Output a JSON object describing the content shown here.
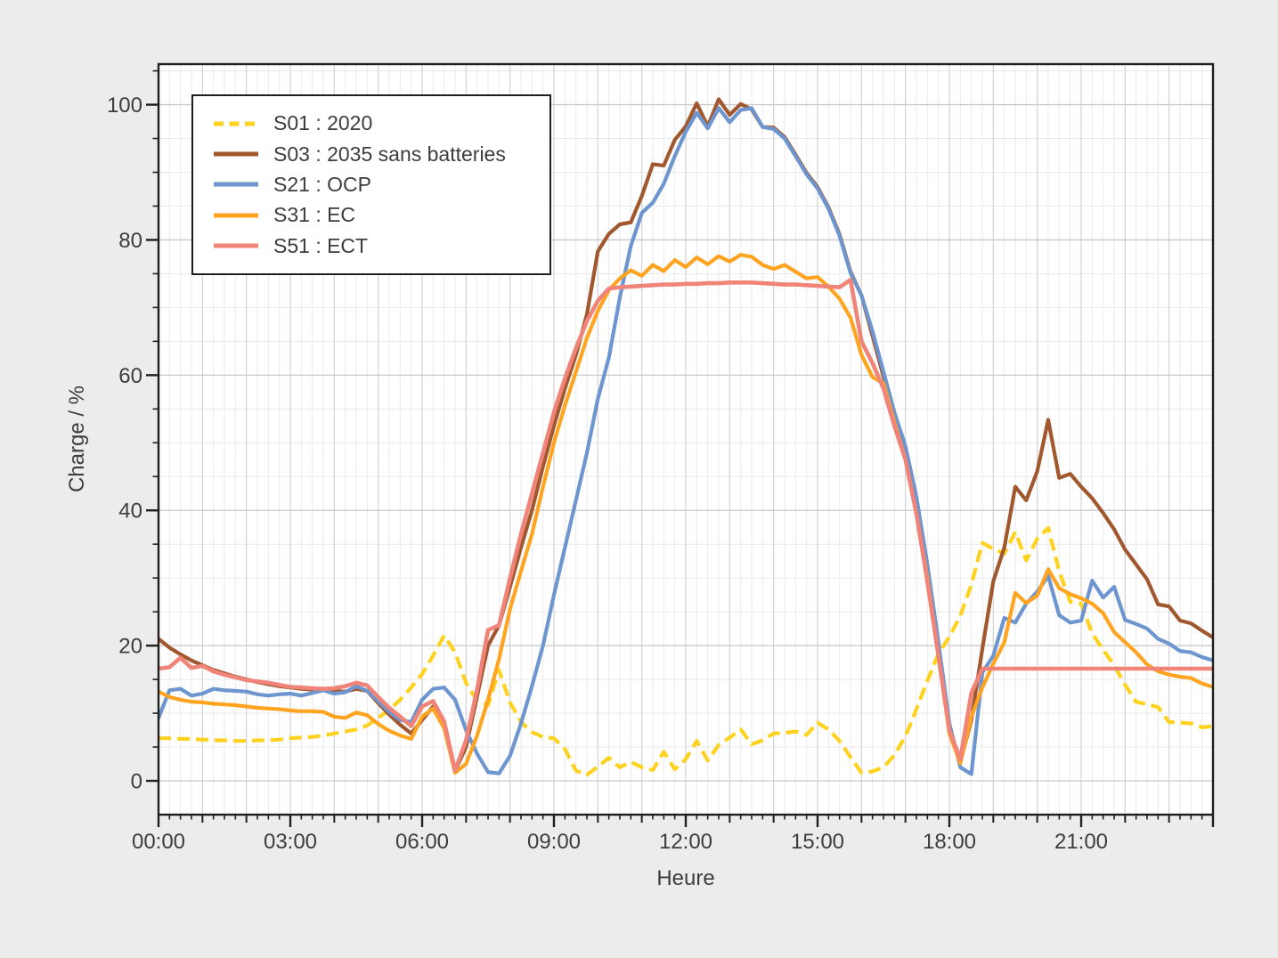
{
  "figure": {
    "background": "#ECECEC",
    "plot_background": "#FFFFFF",
    "spine_color": "#1F1F1F",
    "text_color": "#3D3D3D",
    "grid_major_color": "#C9C9C9",
    "grid_hour_color": "#D2D2D2",
    "grid_minor_color": "#EAEAEA"
  },
  "axes": {
    "xlabel": "Heure",
    "ylabel": "Charge / %",
    "x_tick_labels": [
      "00:00",
      "03:00",
      "06:00",
      "09:00",
      "12:00",
      "15:00",
      "18:00",
      "21:00"
    ],
    "x_tick_hours": [
      0,
      3,
      6,
      9,
      12,
      15,
      18,
      21
    ],
    "y_tick_labels": [
      "0",
      "20",
      "40",
      "60",
      "80",
      "100"
    ],
    "y_tick_values": [
      0,
      20,
      40,
      60,
      80,
      100
    ],
    "x_minor_step_hours": 0.25,
    "y_minor_step": 5
  },
  "legend": {
    "position": "upper left",
    "background": "#FFFFFF",
    "border_color": "#1F1F1F"
  },
  "chart_data": {
    "type": "line",
    "title": "",
    "xlabel": "Heure",
    "ylabel": "Charge / %",
    "xlim_hours": [
      0,
      24
    ],
    "ylim": [
      -5,
      106
    ],
    "grid": true,
    "legend_position": "upper left",
    "x_hours": [
      0,
      0.25,
      0.5,
      0.75,
      1,
      1.25,
      1.5,
      1.75,
      2,
      2.25,
      2.5,
      2.75,
      3,
      3.25,
      3.5,
      3.75,
      4,
      4.25,
      4.5,
      4.75,
      5,
      5.25,
      5.5,
      5.75,
      6,
      6.25,
      6.5,
      6.75,
      7,
      7.25,
      7.5,
      7.75,
      8,
      8.25,
      8.5,
      8.75,
      9,
      9.25,
      9.5,
      9.75,
      10,
      10.25,
      10.5,
      10.75,
      11,
      11.25,
      11.5,
      11.75,
      12,
      12.25,
      12.5,
      12.75,
      13,
      13.25,
      13.5,
      13.75,
      14,
      14.25,
      14.5,
      14.75,
      15,
      15.25,
      15.5,
      15.75,
      16,
      16.25,
      16.5,
      16.75,
      17,
      17.25,
      17.5,
      17.75,
      18,
      18.25,
      18.5,
      18.75,
      19,
      19.25,
      19.5,
      19.75,
      20,
      20.25,
      20.5,
      20.75,
      21,
      21.25,
      21.5,
      21.75,
      22,
      22.25,
      22.5,
      22.75,
      23,
      23.25,
      23.5,
      23.75,
      24
    ],
    "series": [
      {
        "name": "S01",
        "label": "S01 : 2020",
        "color": "#FFD21F",
        "dashed": true,
        "line_width": 4.2,
        "values": [
          6.3,
          6.3,
          6.2,
          6.2,
          6.1,
          6,
          6,
          5.9,
          5.9,
          6,
          6,
          6.1,
          6.3,
          6.4,
          6.5,
          6.7,
          7,
          7.3,
          7.6,
          8.2,
          9.3,
          10.5,
          12,
          13.8,
          15.8,
          18.5,
          21.5,
          19,
          14.5,
          11.8,
          11.2,
          16.4,
          11.6,
          8.7,
          7.2,
          6.5,
          6.3,
          4.7,
          1.5,
          0.9,
          2.1,
          3.4,
          2,
          2.8,
          2,
          1.6,
          4.3,
          1.7,
          3.2,
          5.9,
          3,
          5.3,
          6.4,
          7.6,
          5.4,
          6,
          7,
          7.1,
          7.3,
          6.8,
          8.6,
          7.6,
          5.9,
          3.5,
          1.2,
          1.4,
          2,
          3.8,
          6.6,
          10.6,
          14.8,
          18.8,
          21.3,
          24.4,
          29,
          35.2,
          34.3,
          33.6,
          36.8,
          32.6,
          35.8,
          37.4,
          31,
          26.5,
          26.2,
          21.8,
          19.4,
          17.1,
          14.2,
          11.7,
          11.3,
          10.9,
          8.7,
          8.6,
          8.5,
          7.9,
          8.1
        ]
      },
      {
        "name": "S03",
        "label": "S03 : 2035 sans batteries",
        "color": "#A2582F",
        "dashed": false,
        "line_width": 4.2,
        "values": [
          21,
          19.7,
          18.7,
          17.8,
          17.1,
          16.4,
          15.9,
          15.4,
          15,
          14.6,
          14.3,
          14,
          13.8,
          13.6,
          13.5,
          13.4,
          13.3,
          13.2,
          13.6,
          13.3,
          11.5,
          9.8,
          8.3,
          7,
          9,
          11,
          8.2,
          1.5,
          5,
          12.5,
          20,
          23,
          28.7,
          34.5,
          40,
          46.5,
          52.5,
          58,
          63,
          69,
          78.3,
          80.9,
          82.3,
          82.6,
          86.5,
          91.2,
          91,
          94.8,
          96.8,
          100.2,
          96.8,
          100.8,
          98.5,
          100.1,
          99.3,
          96.7,
          96.6,
          95.2,
          92.6,
          89.9,
          87.8,
          84.8,
          80.8,
          75.3,
          71.8,
          65.8,
          59.8,
          53.8,
          48.5,
          41,
          31,
          19.5,
          7.5,
          2.8,
          9,
          19.5,
          29.5,
          34.5,
          43.5,
          41.5,
          45.8,
          53.4,
          44.8,
          45.4,
          43.5,
          41.8,
          39.6,
          37.2,
          34.2,
          32,
          29.8,
          26.1,
          25.8,
          23.7,
          23.3,
          22.2,
          21.2
        ]
      },
      {
        "name": "S21",
        "label": "S21 : OCP",
        "color": "#6D95D0",
        "dashed": false,
        "line_width": 4.2,
        "values": [
          9.3,
          13.4,
          13.6,
          12.6,
          12.9,
          13.6,
          13.4,
          13.3,
          13.2,
          12.8,
          12.6,
          12.8,
          12.9,
          12.6,
          13,
          13.4,
          12.9,
          13.1,
          14,
          13.3,
          11.8,
          10.2,
          9,
          8.7,
          12,
          13.6,
          13.8,
          12,
          7.5,
          4,
          1.3,
          1.1,
          3.7,
          8.5,
          14,
          20,
          27.5,
          34.5,
          41.5,
          48.5,
          56.5,
          62.6,
          71.5,
          79.1,
          84,
          85.5,
          88.3,
          92.4,
          96,
          98.8,
          96.5,
          99.5,
          97.4,
          99.2,
          99.5,
          96.7,
          96.4,
          95,
          92.4,
          89.7,
          87.6,
          84.6,
          80.6,
          75.1,
          71.8,
          66.5,
          60.5,
          54.5,
          49.5,
          42,
          32,
          20.5,
          8.5,
          2,
          1,
          16,
          18.5,
          24.1,
          23.4,
          26.2,
          28,
          30.3,
          24.5,
          23.4,
          23.7,
          29.6,
          27.1,
          28.7,
          23.8,
          23.2,
          22.5,
          21,
          20.3,
          19.2,
          19,
          18.3,
          17.8
        ]
      },
      {
        "name": "S31",
        "label": "S31 : EC",
        "color": "#FFA421",
        "dashed": false,
        "line_width": 4.2,
        "values": [
          13.2,
          12.4,
          12,
          11.7,
          11.6,
          11.4,
          11.3,
          11.2,
          11,
          10.8,
          10.7,
          10.6,
          10.4,
          10.3,
          10.3,
          10.2,
          9.5,
          9.3,
          10.1,
          9.7,
          8.4,
          7.4,
          6.7,
          6.2,
          9.5,
          10.7,
          7.8,
          1.2,
          2.5,
          6.7,
          12,
          18,
          25.4,
          31,
          36.5,
          43.5,
          50,
          55.5,
          60.5,
          65.5,
          69.5,
          72.6,
          74.3,
          75.5,
          74.7,
          76.3,
          75.4,
          77,
          76,
          77.4,
          76.4,
          77.6,
          76.8,
          77.8,
          77.5,
          76.3,
          75.7,
          76.3,
          75.3,
          74.3,
          74.5,
          73.1,
          71.3,
          68.5,
          63,
          59.7,
          58.8,
          53,
          47.5,
          39.5,
          30,
          18.5,
          7,
          2.6,
          9.5,
          13.8,
          17.3,
          20.5,
          27.8,
          26.3,
          27.4,
          31.3,
          28.5,
          27.6,
          27,
          26.2,
          24.8,
          22,
          20.5,
          19,
          17.2,
          16.2,
          15.7,
          15.4,
          15.2,
          14.4,
          13.9
        ]
      },
      {
        "name": "S51",
        "label": "S51 : ECT",
        "color": "#F08478",
        "dashed": false,
        "line_width": 4.6,
        "values": [
          16.6,
          16.8,
          18.2,
          16.7,
          17,
          16.2,
          15.7,
          15.3,
          14.9,
          14.7,
          14.5,
          14.2,
          13.9,
          13.8,
          13.7,
          13.6,
          13.7,
          14,
          14.5,
          14.1,
          12.4,
          10.8,
          9.5,
          8.1,
          11,
          11.8,
          8.8,
          1.5,
          6,
          13.5,
          22.3,
          23,
          30,
          36.5,
          42.5,
          48.5,
          54.5,
          59.5,
          64,
          68,
          71,
          72.8,
          73,
          73.1,
          73.2,
          73.3,
          73.4,
          73.4,
          73.5,
          73.5,
          73.6,
          73.6,
          73.7,
          73.7,
          73.7,
          73.6,
          73.5,
          73.4,
          73.4,
          73.3,
          73.2,
          73.1,
          73,
          74.1,
          65,
          61.8,
          58,
          52.5,
          47.5,
          39.5,
          29.5,
          18.5,
          7.5,
          3.2,
          13,
          16.6,
          16.6,
          16.6,
          16.6,
          16.6,
          16.6,
          16.6,
          16.6,
          16.6,
          16.6,
          16.6,
          16.6,
          16.6,
          16.6,
          16.6,
          16.6,
          16.6,
          16.6,
          16.6,
          16.6,
          16.6,
          16.6
        ]
      }
    ]
  }
}
